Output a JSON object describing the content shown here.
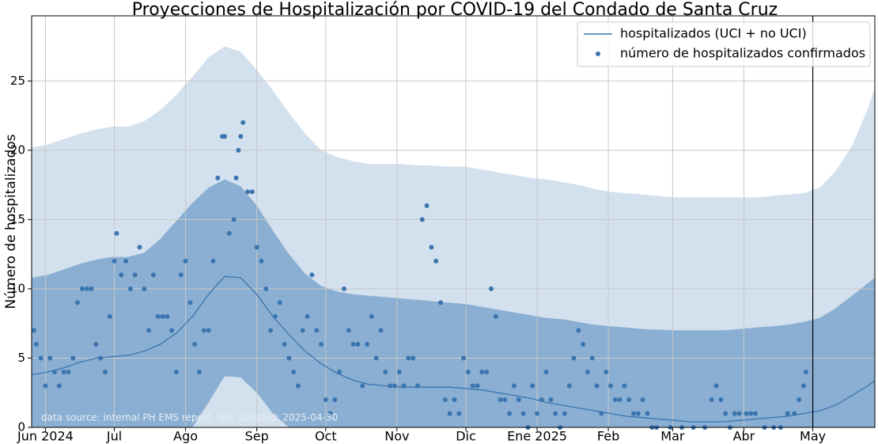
{
  "chart_data": {
    "type": "line",
    "title": "Proyecciones de Hospitalización por COVID-19 del Condado de Santa Cruz",
    "ylabel": "Número de hospitalizados",
    "annotation": "data source: internal PH EMS report, last updated: 2025-04-30",
    "xlim": [
      "2024-05-26",
      "2025-05-28"
    ],
    "xticks": [
      {
        "value": "2024-06-01",
        "label": "Jun 2024"
      },
      {
        "value": "2024-07-01",
        "label": "Jul"
      },
      {
        "value": "2024-08-01",
        "label": "Ago"
      },
      {
        "value": "2024-09-01",
        "label": "Sep"
      },
      {
        "value": "2024-10-01",
        "label": "Oct"
      },
      {
        "value": "2024-11-01",
        "label": "Nov"
      },
      {
        "value": "2024-12-01",
        "label": "Dic"
      },
      {
        "value": "2025-01-01",
        "label": "Ene 2025"
      },
      {
        "value": "2025-02-01",
        "label": "Feb"
      },
      {
        "value": "2025-03-01",
        "label": "Mar"
      },
      {
        "value": "2025-04-01",
        "label": "Abr"
      },
      {
        "value": "2025-05-01",
        "label": "May"
      }
    ],
    "ylim": [
      0,
      29.7
    ],
    "yticks": [
      0,
      5,
      10,
      15,
      20,
      25
    ],
    "grid": true,
    "legend": "upper right",
    "vline": "2025-05-01",
    "bands_x": [
      "2024-05-26",
      "2024-06-02",
      "2024-06-09",
      "2024-06-16",
      "2024-06-23",
      "2024-06-30",
      "2024-07-07",
      "2024-07-14",
      "2024-07-21",
      "2024-07-28",
      "2024-08-04",
      "2024-08-11",
      "2024-08-18",
      "2024-08-25",
      "2024-09-01",
      "2024-09-08",
      "2024-09-15",
      "2024-09-22",
      "2024-09-29",
      "2024-10-06",
      "2024-10-13",
      "2024-10-20",
      "2024-10-27",
      "2024-11-03",
      "2024-11-10",
      "2024-11-17",
      "2024-11-24",
      "2024-12-01",
      "2024-12-08",
      "2024-12-15",
      "2024-12-22",
      "2024-12-29",
      "2025-01-05",
      "2025-01-12",
      "2025-01-19",
      "2025-01-26",
      "2025-02-02",
      "2025-02-09",
      "2025-02-16",
      "2025-02-23",
      "2025-03-02",
      "2025-03-09",
      "2025-03-16",
      "2025-03-23",
      "2025-03-30",
      "2025-04-06",
      "2025-04-13",
      "2025-04-20",
      "2025-04-27",
      "2025-05-04",
      "2025-05-11",
      "2025-05-18",
      "2025-05-25",
      "2025-05-28"
    ],
    "bands": [
      {
        "color": "#d3e0ed",
        "upper": [
          20.2,
          20.4,
          20.8,
          21.2,
          21.5,
          21.7,
          21.7,
          22.1,
          22.9,
          24.0,
          25.3,
          26.7,
          27.5,
          27.1,
          25.8,
          24.3,
          22.7,
          21.2,
          20.0,
          19.5,
          19.2,
          19.0,
          19.0,
          19.0,
          18.9,
          18.9,
          18.8,
          18.8,
          18.6,
          18.4,
          18.2,
          18.0,
          17.9,
          17.7,
          17.5,
          17.2,
          17.0,
          16.9,
          16.8,
          16.7,
          16.6,
          16.6,
          16.6,
          16.6,
          16.6,
          16.6,
          16.7,
          16.8,
          16.9,
          17.3,
          18.5,
          20.3,
          23.0,
          24.5
        ],
        "lower": [
          0,
          0,
          0,
          0,
          0,
          0,
          0,
          0,
          0,
          0,
          0,
          0,
          0,
          0,
          0,
          0,
          0,
          0,
          0,
          0,
          0,
          0,
          0,
          0,
          0,
          0,
          0,
          0,
          0,
          0,
          0,
          0,
          0,
          0,
          0,
          0,
          0,
          0,
          0,
          0,
          0,
          0,
          0,
          0,
          0,
          0,
          0,
          0,
          0,
          0,
          0,
          0,
          0,
          0
        ]
      },
      {
        "color": "#8aafd2",
        "upper": [
          10.8,
          11.0,
          11.4,
          11.8,
          12.1,
          12.3,
          12.3,
          12.6,
          13.6,
          14.9,
          16.2,
          17.3,
          17.9,
          17.4,
          16.0,
          14.2,
          12.5,
          11.1,
          10.2,
          9.8,
          9.6,
          9.5,
          9.4,
          9.3,
          9.2,
          9.1,
          9.0,
          8.9,
          8.7,
          8.5,
          8.3,
          8.1,
          7.9,
          7.8,
          7.6,
          7.4,
          7.3,
          7.2,
          7.1,
          7.05,
          7.0,
          7.0,
          7.0,
          7.0,
          7.1,
          7.2,
          7.3,
          7.4,
          7.6,
          7.9,
          8.6,
          9.5,
          10.4,
          10.8
        ],
        "lower": [
          0,
          0,
          0,
          0,
          0,
          0,
          0,
          0,
          0,
          0,
          0,
          1.8,
          3.7,
          3.6,
          2.5,
          1.0,
          0,
          0,
          0,
          0,
          0,
          0,
          0,
          0,
          0,
          0,
          0,
          0,
          0,
          0,
          0,
          0,
          0,
          0,
          0,
          0,
          0,
          0,
          0,
          0,
          0,
          0,
          0,
          0,
          0,
          0,
          0,
          0,
          0,
          0,
          0,
          0,
          0,
          0
        ]
      }
    ],
    "series": [
      {
        "name": "hospitalizados (UCI + no UCI)",
        "color": "#3b75af",
        "kind": "line",
        "x": [
          "2024-05-26",
          "2024-06-02",
          "2024-06-09",
          "2024-06-16",
          "2024-06-23",
          "2024-06-30",
          "2024-07-07",
          "2024-07-14",
          "2024-07-21",
          "2024-07-28",
          "2024-08-04",
          "2024-08-11",
          "2024-08-18",
          "2024-08-25",
          "2024-09-01",
          "2024-09-08",
          "2024-09-15",
          "2024-09-22",
          "2024-09-29",
          "2024-10-06",
          "2024-10-13",
          "2024-10-20",
          "2024-10-27",
          "2024-11-03",
          "2024-11-10",
          "2024-11-17",
          "2024-11-24",
          "2024-12-01",
          "2024-12-08",
          "2024-12-15",
          "2024-12-22",
          "2024-12-29",
          "2025-01-05",
          "2025-01-12",
          "2025-01-19",
          "2025-01-26",
          "2025-02-02",
          "2025-02-09",
          "2025-02-16",
          "2025-02-23",
          "2025-03-02",
          "2025-03-09",
          "2025-03-16",
          "2025-03-23",
          "2025-03-30",
          "2025-04-06",
          "2025-04-13",
          "2025-04-20",
          "2025-04-27",
          "2025-05-04",
          "2025-05-11",
          "2025-05-18",
          "2025-05-25",
          "2025-05-28"
        ],
        "values": [
          3.8,
          4.0,
          4.3,
          4.7,
          5.0,
          5.1,
          5.2,
          5.5,
          6.0,
          6.8,
          8.0,
          9.6,
          10.9,
          10.8,
          9.6,
          8.0,
          6.7,
          5.5,
          4.6,
          3.9,
          3.4,
          3.1,
          3.0,
          2.9,
          2.9,
          2.9,
          2.9,
          2.8,
          2.7,
          2.5,
          2.3,
          2.1,
          1.8,
          1.6,
          1.4,
          1.2,
          1.0,
          0.8,
          0.7,
          0.6,
          0.5,
          0.4,
          0.4,
          0.4,
          0.5,
          0.6,
          0.7,
          0.8,
          1.0,
          1.2,
          1.6,
          2.3,
          3.0,
          3.4
        ]
      },
      {
        "name": "número de hospitalizados confirmados",
        "color": "#3b75af",
        "kind": "scatter",
        "x": [
          "2024-05-27",
          "2024-05-28",
          "2024-05-30",
          "2024-06-01",
          "2024-06-03",
          "2024-06-05",
          "2024-06-07",
          "2024-06-09",
          "2024-06-11",
          "2024-06-13",
          "2024-06-15",
          "2024-06-17",
          "2024-06-19",
          "2024-06-21",
          "2024-06-23",
          "2024-06-25",
          "2024-06-27",
          "2024-06-29",
          "2024-07-01",
          "2024-07-02",
          "2024-07-04",
          "2024-07-06",
          "2024-07-08",
          "2024-07-10",
          "2024-07-12",
          "2024-07-14",
          "2024-07-16",
          "2024-07-18",
          "2024-07-20",
          "2024-07-22",
          "2024-07-24",
          "2024-07-26",
          "2024-07-28",
          "2024-07-30",
          "2024-08-01",
          "2024-08-03",
          "2024-08-05",
          "2024-08-07",
          "2024-08-09",
          "2024-08-11",
          "2024-08-13",
          "2024-08-15",
          "2024-08-17",
          "2024-08-18",
          "2024-08-20",
          "2024-08-22",
          "2024-08-23",
          "2024-08-24",
          "2024-08-25",
          "2024-08-26",
          "2024-08-28",
          "2024-08-30",
          "2024-09-01",
          "2024-09-03",
          "2024-09-05",
          "2024-09-07",
          "2024-09-09",
          "2024-09-11",
          "2024-09-13",
          "2024-09-15",
          "2024-09-17",
          "2024-09-19",
          "2024-09-21",
          "2024-09-23",
          "2024-09-25",
          "2024-09-27",
          "2024-09-29",
          "2024-10-01",
          "2024-10-03",
          "2024-10-05",
          "2024-10-07",
          "2024-10-09",
          "2024-10-11",
          "2024-10-13",
          "2024-10-15",
          "2024-10-17",
          "2024-10-19",
          "2024-10-21",
          "2024-10-23",
          "2024-10-25",
          "2024-10-27",
          "2024-10-29",
          "2024-10-31",
          "2024-11-02",
          "2024-11-04",
          "2024-11-06",
          "2024-11-08",
          "2024-11-10",
          "2024-11-12",
          "2024-11-14",
          "2024-11-16",
          "2024-11-18",
          "2024-11-20",
          "2024-11-22",
          "2024-11-24",
          "2024-11-26",
          "2024-11-28",
          "2024-11-30",
          "2024-12-02",
          "2024-12-04",
          "2024-12-06",
          "2024-12-08",
          "2024-12-10",
          "2024-12-12",
          "2024-12-14",
          "2024-12-16",
          "2024-12-18",
          "2024-12-20",
          "2024-12-22",
          "2024-12-24",
          "2024-12-26",
          "2024-12-28",
          "2024-12-30",
          "2025-01-01",
          "2025-01-03",
          "2025-01-05",
          "2025-01-07",
          "2025-01-09",
          "2025-01-11",
          "2025-01-13",
          "2025-01-15",
          "2025-01-17",
          "2025-01-19",
          "2025-01-21",
          "2025-01-23",
          "2025-01-25",
          "2025-01-27",
          "2025-01-29",
          "2025-01-31",
          "2025-02-02",
          "2025-02-04",
          "2025-02-06",
          "2025-02-08",
          "2025-02-10",
          "2025-02-12",
          "2025-02-14",
          "2025-02-16",
          "2025-02-18",
          "2025-02-20",
          "2025-02-22",
          "2025-02-28",
          "2025-03-05",
          "2025-03-10",
          "2025-03-15",
          "2025-03-18",
          "2025-03-20",
          "2025-03-22",
          "2025-03-24",
          "2025-03-26",
          "2025-03-28",
          "2025-03-30",
          "2025-04-02",
          "2025-04-04",
          "2025-04-06",
          "2025-04-10",
          "2025-04-14",
          "2025-04-17",
          "2025-04-20",
          "2025-04-23",
          "2025-04-25",
          "2025-04-27",
          "2025-04-28"
        ],
        "values": [
          7,
          6,
          5,
          3,
          5,
          4,
          3,
          4,
          4,
          5,
          9,
          10,
          10,
          10,
          6,
          5,
          4,
          8,
          12,
          14,
          11,
          12,
          10,
          11,
          13,
          10,
          7,
          11,
          8,
          8,
          8,
          7,
          4,
          11,
          12,
          9,
          6,
          4,
          7,
          7,
          12,
          18,
          21,
          21,
          14,
          15,
          18,
          20,
          21,
          22,
          17,
          17,
          13,
          12,
          10,
          7,
          8,
          9,
          6,
          5,
          4,
          3,
          7,
          8,
          11,
          7,
          6,
          2,
          1,
          2,
          4,
          10,
          7,
          6,
          6,
          3,
          6,
          8,
          5,
          7,
          4,
          3,
          3,
          4,
          3,
          5,
          5,
          3,
          15,
          16,
          13,
          12,
          9,
          2,
          1,
          2,
          1,
          5,
          4,
          3,
          3,
          4,
          4,
          10,
          8,
          2,
          2,
          1,
          3,
          2,
          1,
          0,
          3,
          1,
          2,
          4,
          2,
          1,
          0,
          1,
          3,
          5,
          7,
          6,
          4,
          5,
          3,
          1,
          4,
          3,
          2,
          2,
          3,
          2,
          1,
          1,
          2,
          1,
          0,
          0,
          0,
          0,
          0,
          0,
          2,
          3,
          2,
          1,
          0,
          1,
          1,
          1,
          1,
          1,
          0,
          0,
          0,
          1,
          1,
          2,
          3,
          4
        ]
      }
    ]
  }
}
